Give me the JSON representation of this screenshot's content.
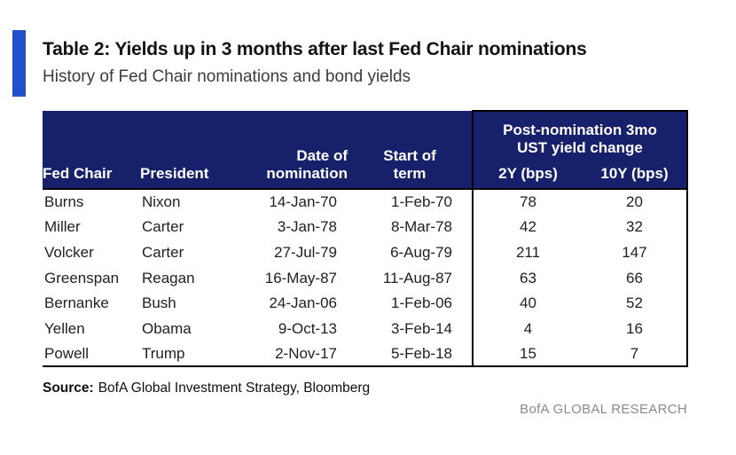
{
  "colors": {
    "accent_bar": "#2151cd",
    "header_background": "#17216b",
    "header_text": "#ffffff",
    "body_text": "#212121",
    "brand_text": "#8a8a8a"
  },
  "title": "Table 2: Yields up in 3 months after last Fed Chair nominations",
  "subtitle": "History of Fed Chair nominations and bond yields",
  "table": {
    "headers": {
      "fed_chair": "Fed Chair",
      "president": "President",
      "date_line1": "Date of",
      "date_line2": "nomination",
      "term_line1": "Start of",
      "term_line2": "term",
      "group_line1": "Post-nomination 3mo",
      "group_line2": "UST yield change",
      "y2": "2Y (bps)",
      "y10": "10Y (bps)"
    },
    "rows": [
      [
        "Burns",
        "Nixon",
        "14-Jan-70",
        "1-Feb-70",
        "78",
        "20"
      ],
      [
        "Miller",
        "Carter",
        "3-Jan-78",
        "8-Mar-78",
        "42",
        "32"
      ],
      [
        "Volcker",
        "Carter",
        "27-Jul-79",
        "6-Aug-79",
        "211",
        "147"
      ],
      [
        "Greenspan",
        "Reagan",
        "16-May-87",
        "11-Aug-87",
        "63",
        "66"
      ],
      [
        "Bernanke",
        "Bush",
        "24-Jan-06",
        "1-Feb-06",
        "40",
        "52"
      ],
      [
        "Yellen",
        "Obama",
        "9-Oct-13",
        "3-Feb-14",
        "4",
        "16"
      ],
      [
        "Powell",
        "Trump",
        "2-Nov-17",
        "5-Feb-18",
        "15",
        "7"
      ]
    ]
  },
  "source": {
    "label": "Source:",
    "text": "BofA Global Investment Strategy, Bloomberg"
  },
  "brand": "BofA GLOBAL RESEARCH"
}
